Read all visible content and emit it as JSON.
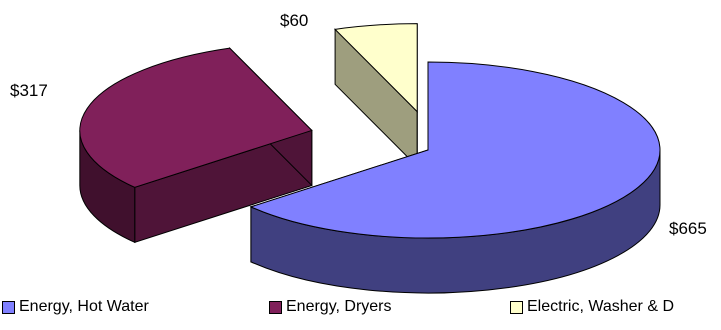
{
  "chart_data": {
    "type": "pie",
    "style": "3d-exploded",
    "categories": [
      "Energy, Hot Water",
      "Energy, Dryers",
      "Electric, Washer & D"
    ],
    "values": [
      665,
      317,
      60
    ],
    "data_labels": [
      "$665",
      "$317",
      "$60"
    ],
    "colors": [
      "#8080ff",
      "#80205a",
      "#ffffcc"
    ],
    "legend_position": "bottom"
  }
}
